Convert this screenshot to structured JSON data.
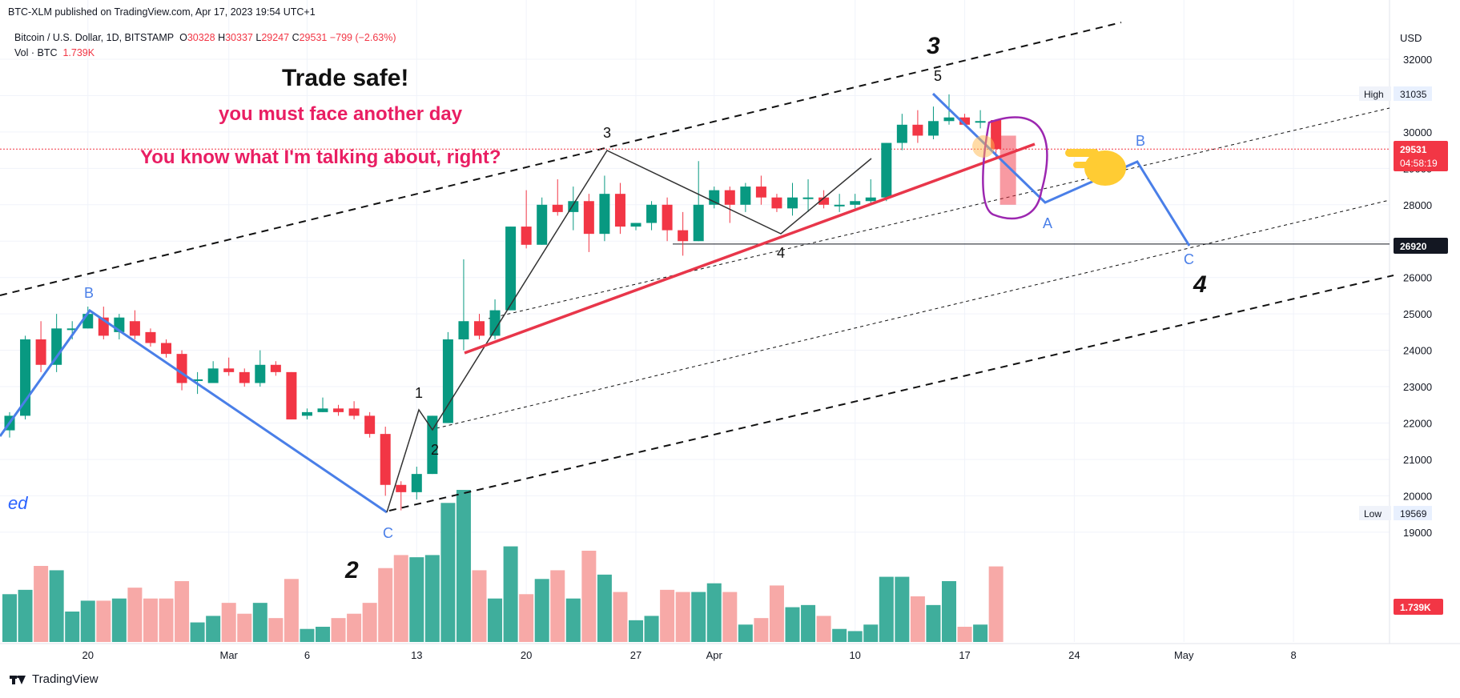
{
  "header": {
    "published": "BTC-XLM published on TradingView.com, Apr 17, 2023 19:54 UTC+1",
    "symbol": "Bitcoin / U.S. Dollar, 1D, BITSTAMP",
    "o_label": "O",
    "o_value": "30328",
    "h_label": "H",
    "h_value": "30337",
    "l_label": "L",
    "l_value": "29247",
    "c_label": "C",
    "c_value": "29531",
    "change": "−799 (−2.63%)",
    "vol_label": "Vol · BTC",
    "vol_value": "1.739K"
  },
  "footer": {
    "brand": "TradingView"
  },
  "colors": {
    "up": "#089981",
    "down": "#f23645",
    "vol_up": "#3fae9c",
    "vol_down": "#f7a9a7",
    "wave_blue": "#4a7fe8",
    "red_line": "#e8364a",
    "note_text": "#e91e63",
    "purple": "#9c27b0",
    "hand": "#ffcc33"
  },
  "chart_data": {
    "type": "candlestick",
    "currency": "USD",
    "y_ticks": [
      19000,
      20000,
      21000,
      22000,
      23000,
      24000,
      25000,
      26000,
      27000,
      28000,
      29000,
      30000,
      31000,
      32000
    ],
    "ylim": [
      18000,
      32400
    ],
    "x_ticks": [
      {
        "label": "20",
        "i": 5
      },
      {
        "label": "Mar",
        "i": 14
      },
      {
        "label": "6",
        "i": 19
      },
      {
        "label": "13",
        "i": 26
      },
      {
        "label": "20",
        "i": 33
      },
      {
        "label": "27",
        "i": 40
      },
      {
        "label": "Apr",
        "i": 45
      },
      {
        "label": "10",
        "i": 54
      },
      {
        "label": "17",
        "i": 61
      },
      {
        "label": "24",
        "i": 68
      },
      {
        "label": "May",
        "i": 75
      },
      {
        "label": "8",
        "i": 82
      }
    ],
    "candles": [
      {
        "o": 21800,
        "h": 22300,
        "l": 21600,
        "c": 22200,
        "v": 1.1
      },
      {
        "o": 22200,
        "h": 24400,
        "l": 22100,
        "c": 24300,
        "v": 1.2
      },
      {
        "o": 24300,
        "h": 24800,
        "l": 23400,
        "c": 23600,
        "v": 1.75
      },
      {
        "o": 23600,
        "h": 25000,
        "l": 23400,
        "c": 24600,
        "v": 1.65
      },
      {
        "o": 24600,
        "h": 24800,
        "l": 24300,
        "c": 24600,
        "v": 0.7
      },
      {
        "o": 24600,
        "h": 25200,
        "l": 24600,
        "c": 25000,
        "v": 0.95
      },
      {
        "o": 24900,
        "h": 25200,
        "l": 24300,
        "c": 24400,
        "v": 0.95
      },
      {
        "o": 24500,
        "h": 25000,
        "l": 24300,
        "c": 24900,
        "v": 1.0
      },
      {
        "o": 24800,
        "h": 25100,
        "l": 24300,
        "c": 24400,
        "v": 1.25
      },
      {
        "o": 24500,
        "h": 24600,
        "l": 24100,
        "c": 24200,
        "v": 1.0
      },
      {
        "o": 24200,
        "h": 24300,
        "l": 23800,
        "c": 23900,
        "v": 1.0
      },
      {
        "o": 23900,
        "h": 24000,
        "l": 22900,
        "c": 23100,
        "v": 1.4
      },
      {
        "o": 23200,
        "h": 23400,
        "l": 22800,
        "c": 23200,
        "v": 0.45
      },
      {
        "o": 23100,
        "h": 23700,
        "l": 23100,
        "c": 23500,
        "v": 0.6
      },
      {
        "o": 23500,
        "h": 23800,
        "l": 23300,
        "c": 23400,
        "v": 0.9
      },
      {
        "o": 23400,
        "h": 23500,
        "l": 23000,
        "c": 23100,
        "v": 0.65
      },
      {
        "o": 23100,
        "h": 24000,
        "l": 23000,
        "c": 23600,
        "v": 0.9
      },
      {
        "o": 23600,
        "h": 23700,
        "l": 23300,
        "c": 23400,
        "v": 0.55
      },
      {
        "o": 23400,
        "h": 23400,
        "l": 22100,
        "c": 22100,
        "v": 1.45
      },
      {
        "o": 22200,
        "h": 22400,
        "l": 22100,
        "c": 22300,
        "v": 0.3
      },
      {
        "o": 22300,
        "h": 22700,
        "l": 22300,
        "c": 22400,
        "v": 0.35
      },
      {
        "o": 22400,
        "h": 22500,
        "l": 22200,
        "c": 22300,
        "v": 0.55
      },
      {
        "o": 22400,
        "h": 22600,
        "l": 22100,
        "c": 22200,
        "v": 0.65
      },
      {
        "o": 22200,
        "h": 22300,
        "l": 21600,
        "c": 21700,
        "v": 0.9
      },
      {
        "o": 21700,
        "h": 21900,
        "l": 20000,
        "c": 20300,
        "v": 1.7
      },
      {
        "o": 20300,
        "h": 20400,
        "l": 19600,
        "c": 20100,
        "v": 2.0
      },
      {
        "o": 20100,
        "h": 20800,
        "l": 19900,
        "c": 20600,
        "v": 1.95
      },
      {
        "o": 20600,
        "h": 22200,
        "l": 20600,
        "c": 22200,
        "v": 2.0
      },
      {
        "o": 22000,
        "h": 24500,
        "l": 22000,
        "c": 24300,
        "v": 3.2
      },
      {
        "o": 24300,
        "h": 26500,
        "l": 24000,
        "c": 24800,
        "v": 3.5
      },
      {
        "o": 24800,
        "h": 25000,
        "l": 24300,
        "c": 24400,
        "v": 1.65
      },
      {
        "o": 24400,
        "h": 25400,
        "l": 24300,
        "c": 25100,
        "v": 1.0
      },
      {
        "o": 25100,
        "h": 27400,
        "l": 25100,
        "c": 27400,
        "v": 2.2
      },
      {
        "o": 27400,
        "h": 28400,
        "l": 26800,
        "c": 26900,
        "v": 1.1
      },
      {
        "o": 26900,
        "h": 28200,
        "l": 26900,
        "c": 28000,
        "v": 1.45
      },
      {
        "o": 28000,
        "h": 28700,
        "l": 27700,
        "c": 27800,
        "v": 1.65
      },
      {
        "o": 27800,
        "h": 28500,
        "l": 27300,
        "c": 28100,
        "v": 1.0
      },
      {
        "o": 28100,
        "h": 28300,
        "l": 26700,
        "c": 27200,
        "v": 2.1
      },
      {
        "o": 27200,
        "h": 28800,
        "l": 27000,
        "c": 28300,
        "v": 1.55
      },
      {
        "o": 28300,
        "h": 28600,
        "l": 27200,
        "c": 27400,
        "v": 1.15
      },
      {
        "o": 27400,
        "h": 27500,
        "l": 27300,
        "c": 27500,
        "v": 0.5
      },
      {
        "o": 27500,
        "h": 28100,
        "l": 27300,
        "c": 28000,
        "v": 0.6
      },
      {
        "o": 28000,
        "h": 28200,
        "l": 27000,
        "c": 27300,
        "v": 1.2
      },
      {
        "o": 27300,
        "h": 27800,
        "l": 26600,
        "c": 27000,
        "v": 1.15
      },
      {
        "o": 27000,
        "h": 29200,
        "l": 27000,
        "c": 28000,
        "v": 1.15
      },
      {
        "o": 28000,
        "h": 28500,
        "l": 27900,
        "c": 28400,
        "v": 1.35
      },
      {
        "o": 28400,
        "h": 28500,
        "l": 27500,
        "c": 28000,
        "v": 1.15
      },
      {
        "o": 28000,
        "h": 28600,
        "l": 27800,
        "c": 28500,
        "v": 0.4
      },
      {
        "o": 28500,
        "h": 28800,
        "l": 28000,
        "c": 28200,
        "v": 0.55
      },
      {
        "o": 28200,
        "h": 28300,
        "l": 27800,
        "c": 27900,
        "v": 1.3
      },
      {
        "o": 27900,
        "h": 28600,
        "l": 27700,
        "c": 28200,
        "v": 0.8
      },
      {
        "o": 28200,
        "h": 28700,
        "l": 27800,
        "c": 28200,
        "v": 0.85
      },
      {
        "o": 28200,
        "h": 28400,
        "l": 27900,
        "c": 28000,
        "v": 0.6
      },
      {
        "o": 28000,
        "h": 28300,
        "l": 27800,
        "c": 28000,
        "v": 0.3
      },
      {
        "o": 28000,
        "h": 28300,
        "l": 27900,
        "c": 28100,
        "v": 0.25
      },
      {
        "o": 28100,
        "h": 28700,
        "l": 28000,
        "c": 28200,
        "v": 0.4
      },
      {
        "o": 28200,
        "h": 29700,
        "l": 28100,
        "c": 29700,
        "v": 1.5
      },
      {
        "o": 29700,
        "h": 30500,
        "l": 29500,
        "c": 30200,
        "v": 1.5
      },
      {
        "o": 30200,
        "h": 30600,
        "l": 29700,
        "c": 29900,
        "v": 1.05
      },
      {
        "o": 29900,
        "h": 30700,
        "l": 29800,
        "c": 30300,
        "v": 0.85
      },
      {
        "o": 30300,
        "h": 31035,
        "l": 30200,
        "c": 30400,
        "v": 1.4
      },
      {
        "o": 30400,
        "h": 30500,
        "l": 30200,
        "c": 30200,
        "v": 0.35
      },
      {
        "o": 30300,
        "h": 30600,
        "l": 30100,
        "c": 30300,
        "v": 0.4
      },
      {
        "o": 30328,
        "h": 30337,
        "l": 29247,
        "c": 29531,
        "v": 1.739
      }
    ],
    "projection_box": {
      "i": 63,
      "top": 29900,
      "bottom": 28000
    },
    "volume_max_label": "1.739K",
    "price_labels": {
      "high_label": "High",
      "high": "31035",
      "low_label": "Low",
      "low": "19569",
      "last": "29531",
      "countdown": "04:58:19",
      "level": "26920",
      "partial_tick": "29000"
    },
    "annotations": {
      "trade_safe": "Trade safe!",
      "line2": "you must face another day",
      "line3": "You know what I'm talking about, right?",
      "wave_3_big": "3",
      "wave_4_big": "4",
      "wave_2_big": "2",
      "left_text": "ed",
      "labels": [
        "B",
        "C",
        "1",
        "2",
        "3",
        "4",
        "5",
        "A",
        "B",
        "C"
      ]
    }
  }
}
